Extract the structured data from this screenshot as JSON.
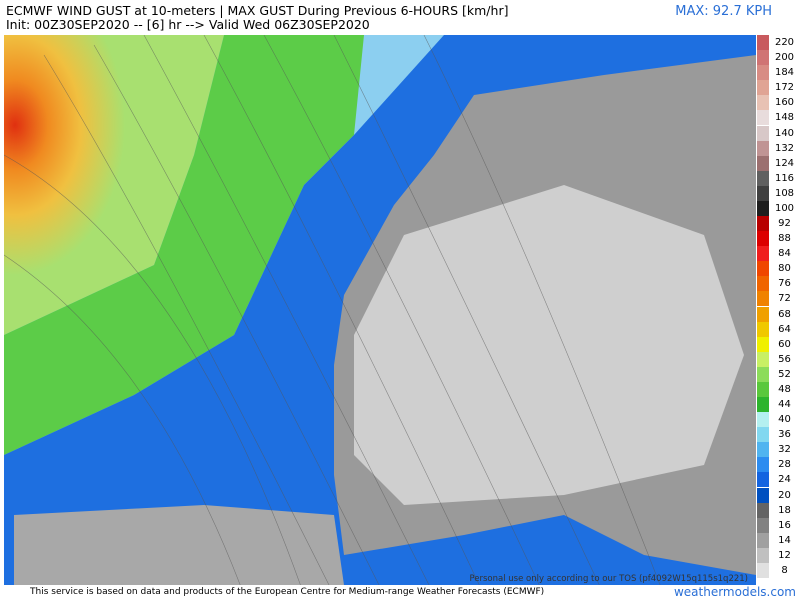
{
  "header": {
    "title": "ECMWF WIND GUST at 10-meters | MAX GUST During Previous 6-HOURS [km/hr]",
    "subtitle": "Init: 00Z30SEP2020 -- [6] hr --> Valid Wed 06Z30SEP2020",
    "max": "MAX: 92.7 KPH"
  },
  "legend": {
    "items": [
      {
        "label": "220",
        "color": "#c85a5e"
      },
      {
        "label": "200",
        "color": "#d07474"
      },
      {
        "label": "184",
        "color": "#d88c84"
      },
      {
        "label": "172",
        "color": "#e0a494"
      },
      {
        "label": "160",
        "color": "#e8c2b4"
      },
      {
        "label": "148",
        "color": "#e8dcdc"
      },
      {
        "label": "140",
        "color": "#d8c8c8"
      },
      {
        "label": "132",
        "color": "#c09494"
      },
      {
        "label": "124",
        "color": "#9c7070"
      },
      {
        "label": "116",
        "color": "#606060"
      },
      {
        "label": "108",
        "color": "#404040"
      },
      {
        "label": "100",
        "color": "#1e1e1e"
      },
      {
        "label": "92",
        "color": "#b80000"
      },
      {
        "label": "88",
        "color": "#dc0000"
      },
      {
        "label": "84",
        "color": "#f01e1e"
      },
      {
        "label": "80",
        "color": "#f04600"
      },
      {
        "label": "76",
        "color": "#f06400"
      },
      {
        "label": "72",
        "color": "#f08200"
      },
      {
        "label": "68",
        "color": "#f0a000"
      },
      {
        "label": "64",
        "color": "#f0c800"
      },
      {
        "label": "60",
        "color": "#f0f000"
      },
      {
        "label": "56",
        "color": "#c8f064"
      },
      {
        "label": "52",
        "color": "#8cdc5a"
      },
      {
        "label": "48",
        "color": "#5ac83c"
      },
      {
        "label": "44",
        "color": "#2db42d"
      },
      {
        "label": "40",
        "color": "#b4f0f0"
      },
      {
        "label": "36",
        "color": "#82d8f0"
      },
      {
        "label": "32",
        "color": "#50b4f0"
      },
      {
        "label": "28",
        "color": "#2c8cf0"
      },
      {
        "label": "24",
        "color": "#1464e0"
      },
      {
        "label": "20",
        "color": "#0050c0"
      },
      {
        "label": "18",
        "color": "#646464"
      },
      {
        "label": "16",
        "color": "#828282"
      },
      {
        "label": "14",
        "color": "#a0a0a0"
      },
      {
        "label": "12",
        "color": "#c0c0c0"
      },
      {
        "label": "8",
        "color": "#e0e0e0"
      }
    ]
  },
  "footer": {
    "credit": "This service is based on data and products of the European Centre for Medium-range Weather Forecasts (ECMWF)",
    "site": "weathermodels.com",
    "watermark": "Personal use only according to our TOS (pf4092W15q115s1q221)"
  }
}
